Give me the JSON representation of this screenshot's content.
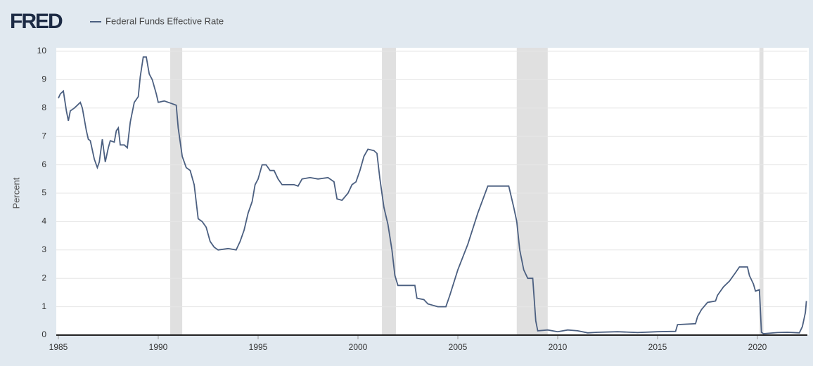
{
  "header": {
    "logo": "FRED"
  },
  "chart_data": {
    "type": "line",
    "ylabel": "Percent",
    "xlim": [
      1985,
      2022.5
    ],
    "ylim": [
      0,
      10
    ],
    "xticks": [
      1985,
      1990,
      1995,
      2000,
      2005,
      2010,
      2015,
      2020
    ],
    "yticks": [
      0,
      1,
      2,
      3,
      4,
      5,
      6,
      7,
      8,
      9,
      10
    ],
    "grid": true,
    "recessions": [
      [
        1990.6,
        1991.2
      ],
      [
        2001.2,
        2001.9
      ],
      [
        2007.95,
        2009.5
      ],
      [
        2020.1,
        2020.3
      ]
    ],
    "x": [
      1985.0,
      1985.1,
      1985.25,
      1985.4,
      1985.5,
      1985.6,
      1985.8,
      1985.95,
      1986.1,
      1986.2,
      1986.4,
      1986.5,
      1986.6,
      1986.8,
      1986.95,
      1987.05,
      1987.2,
      1987.35,
      1987.5,
      1987.6,
      1987.8,
      1987.9,
      1988.0,
      1988.1,
      1988.3,
      1988.45,
      1988.6,
      1988.8,
      1989.0,
      1989.1,
      1989.25,
      1989.4,
      1989.55,
      1989.7,
      1989.9,
      1990.0,
      1990.3,
      1990.5,
      1990.7,
      1990.9,
      1991.0,
      1991.2,
      1991.4,
      1991.6,
      1991.8,
      1992.0,
      1992.2,
      1992.4,
      1992.6,
      1992.8,
      1993.0,
      1993.5,
      1993.9,
      1994.1,
      1994.3,
      1994.5,
      1994.7,
      1994.85,
      1995.0,
      1995.2,
      1995.4,
      1995.6,
      1995.8,
      1996.0,
      1996.2,
      1996.5,
      1996.8,
      1997.0,
      1997.2,
      1997.6,
      1998.0,
      1998.5,
      1998.8,
      1998.95,
      1999.2,
      1999.5,
      1999.7,
      1999.9,
      2000.1,
      2000.3,
      2000.5,
      2000.8,
      2000.95,
      2001.1,
      2001.3,
      2001.5,
      2001.7,
      2001.85,
      2002.0,
      2002.5,
      2002.85,
      2002.95,
      2003.3,
      2003.5,
      2004.0,
      2004.4,
      2004.6,
      2005.0,
      2005.5,
      2006.0,
      2006.5,
      2007.0,
      2007.55,
      2007.8,
      2007.95,
      2008.1,
      2008.3,
      2008.5,
      2008.75,
      2008.9,
      2009.0,
      2009.5,
      2010.0,
      2010.5,
      2011.0,
      2011.5,
      2012.0,
      2013.0,
      2014.0,
      2015.0,
      2015.9,
      2016.0,
      2016.9,
      2017.0,
      2017.2,
      2017.5,
      2017.9,
      2018.0,
      2018.3,
      2018.6,
      2018.9,
      2019.1,
      2019.5,
      2019.6,
      2019.8,
      2019.9,
      2020.1,
      2020.2,
      2020.3,
      2021.0,
      2021.5,
      2022.1,
      2022.25,
      2022.4,
      2022.45
    ],
    "series": [
      {
        "name": "Federal Funds Effective Rate",
        "color": "#4b5f80",
        "values": [
          8.35,
          8.5,
          8.6,
          7.9,
          7.55,
          7.9,
          8.0,
          8.1,
          8.2,
          8.0,
          7.2,
          6.9,
          6.85,
          6.2,
          5.9,
          6.1,
          6.9,
          6.1,
          6.6,
          6.85,
          6.8,
          7.2,
          7.3,
          6.7,
          6.7,
          6.6,
          7.5,
          8.2,
          8.4,
          9.1,
          9.8,
          9.8,
          9.2,
          9.0,
          8.5,
          8.2,
          8.25,
          8.2,
          8.15,
          8.1,
          7.3,
          6.3,
          5.9,
          5.8,
          5.3,
          4.1,
          4.0,
          3.8,
          3.3,
          3.1,
          3.0,
          3.05,
          3.0,
          3.3,
          3.7,
          4.3,
          4.7,
          5.3,
          5.5,
          6.0,
          6.0,
          5.8,
          5.8,
          5.5,
          5.3,
          5.3,
          5.3,
          5.25,
          5.5,
          5.55,
          5.5,
          5.55,
          5.4,
          4.8,
          4.75,
          5.0,
          5.3,
          5.4,
          5.8,
          6.3,
          6.55,
          6.5,
          6.4,
          5.5,
          4.5,
          3.9,
          3.0,
          2.1,
          1.75,
          1.75,
          1.75,
          1.3,
          1.25,
          1.1,
          1.0,
          1.0,
          1.4,
          2.3,
          3.2,
          4.3,
          5.25,
          5.25,
          5.25,
          4.5,
          4.0,
          3.0,
          2.3,
          2.0,
          2.0,
          0.5,
          0.15,
          0.18,
          0.12,
          0.18,
          0.15,
          0.08,
          0.1,
          0.12,
          0.09,
          0.12,
          0.13,
          0.37,
          0.4,
          0.65,
          0.9,
          1.15,
          1.2,
          1.4,
          1.7,
          1.9,
          2.2,
          2.4,
          2.4,
          2.1,
          1.8,
          1.55,
          1.6,
          0.1,
          0.05,
          0.09,
          0.1,
          0.08,
          0.3,
          0.8,
          1.2
        ]
      }
    ]
  }
}
